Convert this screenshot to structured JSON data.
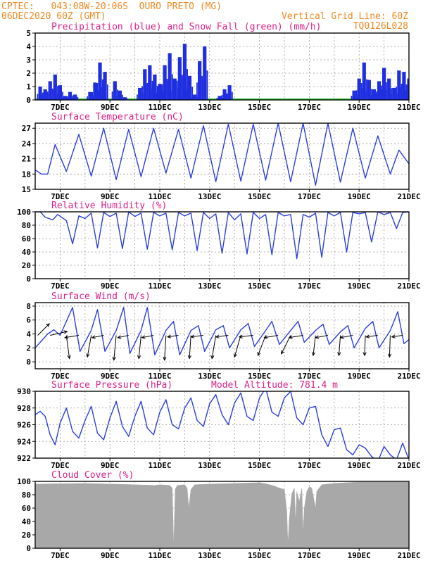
{
  "header": {
    "line1_left": "CPTEC:   043:08W-20:06S  OURO PRETO (MG)",
    "line2_left": "06DEC2020 60Z (GMT)",
    "line1_right": "Vertical Grid Line: 60Z",
    "line2_right": "TQ0126L028"
  },
  "colors": {
    "header": "#f08a24",
    "panel_title": "#e0218a",
    "precip": "#1f2fe0",
    "snow": "#22bb22",
    "line": "#2a3fe0",
    "wind_arrow": "#000000",
    "cloud": "#a8a8a8"
  },
  "x_axis": {
    "day_range": [
      6.0,
      21.0
    ],
    "tick_positions": [
      7,
      9,
      11,
      13,
      15,
      17,
      19,
      21
    ],
    "tick_labels": [
      "7DEC",
      "9DEC",
      "11DEC",
      "13DEC",
      "15DEC",
      "17DEC",
      "19DEC",
      "21DEC"
    ],
    "vertical_grid_days": [
      7,
      8,
      9,
      10,
      11,
      12,
      13,
      14,
      15,
      16,
      17,
      18,
      19,
      20
    ]
  },
  "chart_data": [
    {
      "id": "precip",
      "type": "bar",
      "title": "Precipitation (blue) and Snow Fall (green) (mm/h)",
      "ylim": [
        0,
        5
      ],
      "yticks": [
        0,
        1,
        2,
        3,
        4,
        5
      ],
      "series": [
        {
          "name": "Precipitation (blue)",
          "x": [
            6.2,
            6.4,
            6.6,
            6.8,
            7.0,
            7.2,
            7.4,
            7.6,
            8.2,
            8.4,
            8.6,
            8.8,
            9.2,
            9.4,
            9.6,
            10.2,
            10.4,
            10.6,
            10.8,
            11.0,
            11.2,
            11.4,
            11.6,
            11.8,
            12.0,
            12.2,
            12.4,
            12.6,
            12.8,
            13.4,
            13.6,
            13.8,
            18.8,
            19.0,
            19.2,
            19.4,
            19.6,
            19.8,
            20.0,
            20.2,
            20.4,
            20.6,
            20.8,
            21.0
          ],
          "values": [
            1.0,
            0.8,
            1.4,
            1.9,
            1.1,
            0.3,
            0.6,
            0.4,
            0.6,
            1.3,
            2.8,
            2.1,
            1.4,
            0.7,
            0.2,
            0.9,
            2.3,
            2.6,
            1.9,
            1.2,
            2.6,
            3.5,
            1.6,
            3.2,
            4.2,
            1.8,
            0.4,
            2.9,
            4.0,
            0.3,
            0.8,
            1.1,
            0.7,
            1.6,
            2.8,
            1.5,
            0.8,
            1.4,
            2.4,
            1.6,
            0.9,
            2.2,
            2.1,
            1.6
          ]
        },
        {
          "name": "Snow Fall (green)",
          "x": [
            6.0,
            21.0
          ],
          "values": [
            0,
            0
          ]
        }
      ]
    },
    {
      "id": "temp",
      "type": "line",
      "title": "Surface Temperature (nC)",
      "ylim": [
        15,
        28
      ],
      "yticks": [
        15,
        18,
        21,
        24,
        27
      ],
      "series": [
        {
          "x": [
            6.0,
            6.25,
            6.5,
            6.8,
            7.25,
            7.75,
            8.25,
            8.75,
            9.25,
            9.75,
            10.25,
            10.75,
            11.25,
            11.75,
            12.25,
            12.75,
            13.25,
            13.75,
            14.25,
            14.75,
            15.25,
            15.75,
            16.25,
            16.75,
            17.25,
            17.75,
            18.25,
            18.75,
            19.25,
            19.75,
            20.25,
            20.6,
            21.0
          ],
          "values": [
            18.8,
            18.0,
            18.0,
            23.8,
            18.5,
            25.8,
            17.6,
            27.0,
            16.9,
            26.8,
            17.5,
            27.0,
            18.2,
            26.8,
            17.2,
            27.5,
            16.5,
            27.8,
            16.6,
            27.8,
            16.8,
            28.0,
            16.5,
            28.0,
            15.8,
            28.0,
            16.4,
            27.0,
            17.2,
            25.5,
            18.0,
            22.7,
            20.0
          ]
        }
      ]
    },
    {
      "id": "rh",
      "type": "line",
      "title": "Relative Humidity (%)",
      "ylim": [
        0,
        100
      ],
      "yticks": [
        0,
        20,
        40,
        60,
        80,
        100
      ],
      "ytick_labels": [
        "0",
        "20",
        "40",
        "60",
        "80",
        "100"
      ],
      "series": [
        {
          "x": [
            6.0,
            6.2,
            6.4,
            6.7,
            6.9,
            7.25,
            7.5,
            7.75,
            8.0,
            8.25,
            8.5,
            8.75,
            9.0,
            9.25,
            9.5,
            9.75,
            10.0,
            10.25,
            10.5,
            10.75,
            11.0,
            11.25,
            11.5,
            11.75,
            12.0,
            12.25,
            12.5,
            12.75,
            13.0,
            13.25,
            13.5,
            13.75,
            14.0,
            14.25,
            14.5,
            14.75,
            15.0,
            15.25,
            15.5,
            15.75,
            16.0,
            16.25,
            16.5,
            16.75,
            17.0,
            17.25,
            17.5,
            17.75,
            18.0,
            18.25,
            18.5,
            18.75,
            19.0,
            19.25,
            19.5,
            19.75,
            20.0,
            20.25,
            20.5,
            20.75,
            21.0
          ],
          "values": [
            100,
            100,
            92,
            88,
            96,
            87,
            52,
            94,
            90,
            98,
            46,
            99,
            93,
            98,
            45,
            100,
            93,
            98,
            44,
            99,
            94,
            98,
            43,
            99,
            94,
            98,
            42,
            99,
            90,
            97,
            38,
            99,
            88,
            97,
            37,
            99,
            90,
            96,
            36,
            99,
            94,
            96,
            30,
            96,
            92,
            98,
            32,
            99,
            94,
            99,
            40,
            99,
            97,
            99,
            55,
            100,
            96,
            99,
            75,
            99,
            100
          ]
        }
      ]
    },
    {
      "id": "wind",
      "type": "line",
      "title": "Surface Wind (m/s)",
      "ylim": [
        -1,
        8.5
      ],
      "yticks": [
        0,
        2,
        4,
        6,
        8
      ],
      "series": [
        {
          "x": [
            6.0,
            6.25,
            6.5,
            6.75,
            7.0,
            7.5,
            7.8,
            8.25,
            8.5,
            8.8,
            9.25,
            9.55,
            9.8,
            10.25,
            10.5,
            10.8,
            11.25,
            11.55,
            11.8,
            12.25,
            12.55,
            12.8,
            13.25,
            13.55,
            13.8,
            14.25,
            14.55,
            14.8,
            15.25,
            15.5,
            15.8,
            16.25,
            16.55,
            16.8,
            17.25,
            17.55,
            17.8,
            18.25,
            18.55,
            18.8,
            19.25,
            19.55,
            19.8,
            20.25,
            20.55,
            20.8,
            21.0
          ],
          "values": [
            2.0,
            3.0,
            4.0,
            4.6,
            3.8,
            7.8,
            1.5,
            4.5,
            7.5,
            1.5,
            4.5,
            7.8,
            1.2,
            4.5,
            7.8,
            1.0,
            4.5,
            5.8,
            1.0,
            4.5,
            5.2,
            1.5,
            4.6,
            5.2,
            2.0,
            4.6,
            5.5,
            2.2,
            4.5,
            5.8,
            2.5,
            4.5,
            5.8,
            2.8,
            4.5,
            5.4,
            2.5,
            4.3,
            5.2,
            2.0,
            4.8,
            5.8,
            2.0,
            4.5,
            7.2,
            2.6,
            3.2
          ]
        }
      ],
      "wind_arrows": {
        "x": [
          6.1,
          6.6,
          7.25,
          7.75,
          8.25,
          8.75,
          9.25,
          9.75,
          10.25,
          10.75,
          11.25,
          11.75,
          12.25,
          12.75,
          13.25,
          13.75,
          14.25,
          14.75,
          15.25,
          15.75,
          16.25,
          16.75,
          17.25,
          17.75,
          18.25,
          18.75,
          19.25,
          19.75,
          20.25,
          20.75
        ],
        "u": [
          1.5,
          2.2,
          0.4,
          -1.8,
          -0.5,
          -1.5,
          -0.3,
          -1.4,
          -0.3,
          -1.5,
          -0.2,
          -1.4,
          -0.2,
          -1.6,
          -0.5,
          -1.6,
          -0.8,
          -1.8,
          -1.0,
          -1.8,
          -1.2,
          -1.8,
          -0.3,
          -1.6,
          -0.2,
          -1.6,
          -0.1,
          -1.5,
          -0.1,
          -1.4
        ],
        "v": [
          1.5,
          0.5,
          -3.0,
          -0.3,
          -2.8,
          -0.3,
          -3.2,
          -0.3,
          -3.0,
          -0.3,
          -3.2,
          -0.2,
          -3.0,
          -0.2,
          -3.0,
          -0.2,
          -2.8,
          -0.2,
          -2.6,
          -0.3,
          -2.4,
          -0.3,
          -2.6,
          -0.3,
          -2.6,
          -0.3,
          -2.6,
          -0.2,
          -2.8,
          -0.2
        ]
      }
    },
    {
      "id": "pres",
      "type": "line",
      "title": "Surface Pressure (hPa)",
      "subtitle": "Model Altitude: 781.4 m",
      "ylim": [
        922,
        930
      ],
      "yticks": [
        922,
        924,
        926,
        928,
        930
      ],
      "series": [
        {
          "x": [
            6.0,
            6.2,
            6.4,
            6.6,
            6.8,
            7.0,
            7.25,
            7.5,
            7.75,
            8.0,
            8.25,
            8.5,
            8.75,
            9.0,
            9.25,
            9.5,
            9.75,
            10.0,
            10.25,
            10.5,
            10.75,
            11.0,
            11.25,
            11.5,
            11.75,
            12.0,
            12.25,
            12.5,
            12.75,
            13.0,
            13.25,
            13.5,
            13.75,
            14.0,
            14.25,
            14.5,
            14.75,
            15.0,
            15.25,
            15.5,
            15.75,
            16.0,
            16.25,
            16.5,
            16.75,
            17.0,
            17.25,
            17.5,
            17.75,
            18.0,
            18.25,
            18.5,
            18.75,
            19.0,
            19.25,
            19.5,
            19.75,
            20.0,
            20.25,
            20.5,
            20.75,
            21.0
          ],
          "values": [
            927.2,
            927.6,
            927.0,
            924.8,
            923.6,
            926.2,
            928.0,
            925.2,
            924.4,
            926.5,
            928.2,
            925.0,
            924.2,
            926.8,
            928.8,
            925.8,
            924.6,
            927.0,
            928.8,
            925.6,
            924.8,
            927.5,
            929.0,
            926.0,
            925.5,
            928.0,
            929.2,
            926.5,
            925.8,
            928.5,
            929.6,
            927.2,
            926.0,
            928.6,
            929.8,
            927.0,
            926.5,
            929.2,
            930.4,
            927.5,
            927.0,
            929.2,
            930.0,
            926.8,
            926.0,
            928.0,
            928.2,
            924.8,
            923.4,
            925.4,
            925.6,
            923.0,
            922.4,
            923.6,
            923.2,
            922.2,
            921.6,
            923.4,
            922.4,
            921.8,
            923.8,
            921.8
          ]
        }
      ]
    },
    {
      "id": "cloud",
      "type": "area",
      "title": "Cloud Cover (%)",
      "ylim": [
        0,
        100
      ],
      "yticks": [
        0,
        20,
        40,
        60,
        80,
        100
      ],
      "ytick_labels": [
        "0",
        "20",
        "40",
        "60",
        "80",
        "100"
      ],
      "series": [
        {
          "x": [
            6.0,
            8.0,
            9.0,
            10.0,
            10.8,
            11.0,
            11.4,
            11.5,
            11.56,
            11.62,
            11.7,
            12.0,
            12.1,
            12.16,
            12.25,
            12.4,
            13.0,
            14.0,
            15.0,
            15.3,
            15.6,
            15.8,
            16.0,
            16.1,
            16.14,
            16.2,
            16.3,
            16.4,
            16.45,
            16.5,
            16.6,
            16.7,
            16.75,
            16.8,
            16.9,
            17.0,
            17.1,
            17.2,
            17.25,
            17.3,
            17.5,
            18.0,
            18.5,
            19.0,
            20.0,
            21.0
          ],
          "values": [
            96,
            97,
            96,
            95,
            94,
            95,
            94,
            90,
            2,
            88,
            94,
            95,
            90,
            60,
            88,
            95,
            96,
            97,
            98,
            96,
            93,
            90,
            88,
            55,
            5,
            45,
            82,
            90,
            38,
            85,
            70,
            90,
            22,
            60,
            85,
            92,
            90,
            70,
            60,
            85,
            95,
            97,
            98,
            99,
            99,
            99
          ]
        }
      ]
    }
  ]
}
